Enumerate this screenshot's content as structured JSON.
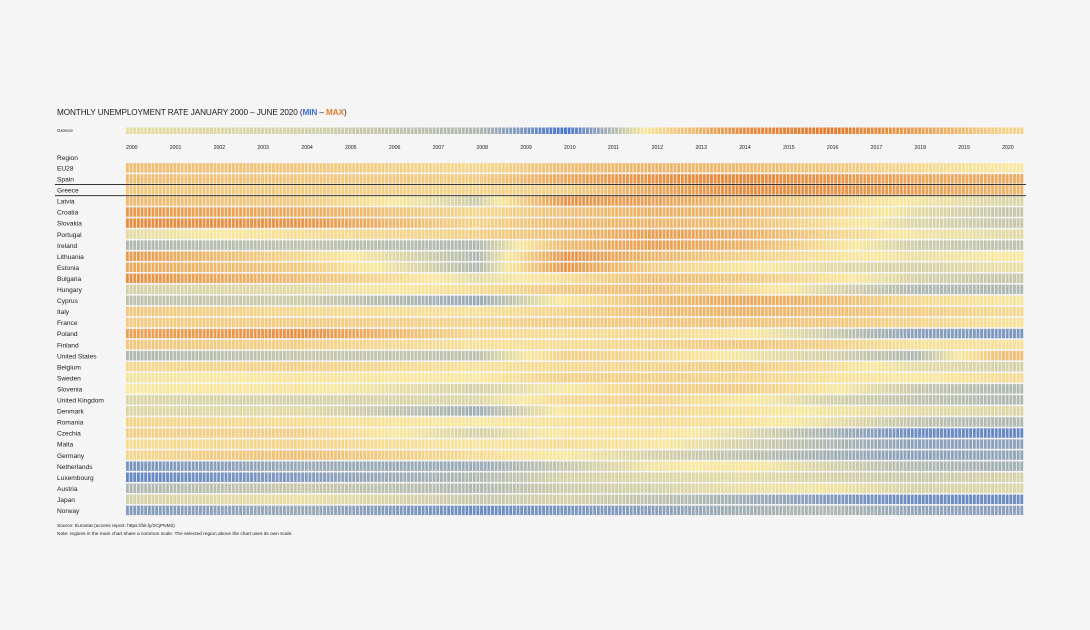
{
  "colors": {
    "min": "#3f6fd1",
    "mid": "#fae99b",
    "max": "#e37b2d"
  },
  "chart_data": {
    "type": "heatmap",
    "title_prefix": "MONTHLY UNEMPLOYMENT RATE JANUARY 2000 – JUNE 2020 (",
    "title_min": "MIN",
    "title_sep": " – ",
    "title_max": "MAX",
    "title_suffix": ")",
    "selected_region": "Greece",
    "region_header": "Region",
    "years": [
      "2000",
      "2001",
      "2002",
      "2003",
      "2004",
      "2005",
      "2006",
      "2007",
      "2008",
      "2009",
      "2010",
      "2011",
      "2012",
      "2013",
      "2014",
      "2015",
      "2016",
      "2017",
      "2018",
      "2019",
      "2020"
    ],
    "period": {
      "start": "2000-01",
      "end": "2020-06",
      "months": 246
    },
    "scale": "relative color scale, MIN (blue) to MAX (orange)",
    "anchor_years": [
      2000,
      2004,
      2008,
      2010,
      2012,
      2014,
      2016,
      2018,
      2020
    ],
    "selected_series": [
      0.45,
      0.4,
      0.3,
      0.02,
      0.55,
      0.92,
      1.0,
      0.85,
      0.6
    ],
    "regions": [
      {
        "name": "EU28",
        "levels": [
          0.7,
          0.66,
          0.58,
          0.7,
          0.74,
          0.72,
          0.66,
          0.58,
          0.5
        ]
      },
      {
        "name": "Spain",
        "levels": [
          0.7,
          0.66,
          0.64,
          0.8,
          0.9,
          0.94,
          0.88,
          0.8,
          0.78
        ]
      },
      {
        "name": "Greece",
        "levels": [
          0.66,
          0.64,
          0.6,
          0.62,
          0.8,
          0.92,
          0.9,
          0.84,
          0.74
        ]
      },
      {
        "name": "Latvia",
        "levels": [
          0.72,
          0.64,
          0.38,
          0.88,
          0.82,
          0.7,
          0.6,
          0.48,
          0.42
        ]
      },
      {
        "name": "Croatia",
        "levels": [
          0.86,
          0.78,
          0.58,
          0.68,
          0.76,
          0.74,
          0.62,
          0.44,
          0.36
        ]
      },
      {
        "name": "Slovakia",
        "levels": [
          0.92,
          0.88,
          0.6,
          0.72,
          0.74,
          0.7,
          0.56,
          0.42,
          0.36
        ]
      },
      {
        "name": "Portugal",
        "levels": [
          0.44,
          0.56,
          0.62,
          0.7,
          0.84,
          0.78,
          0.62,
          0.48,
          0.44
        ]
      },
      {
        "name": "Ireland",
        "levels": [
          0.3,
          0.34,
          0.3,
          0.72,
          0.84,
          0.76,
          0.56,
          0.38,
          0.34
        ]
      },
      {
        "name": "Lithuania",
        "levels": [
          0.86,
          0.58,
          0.3,
          0.88,
          0.74,
          0.62,
          0.54,
          0.46,
          0.5
        ]
      },
      {
        "name": "Estonia",
        "levels": [
          0.8,
          0.64,
          0.3,
          0.88,
          0.62,
          0.52,
          0.44,
          0.4,
          0.46
        ]
      },
      {
        "name": "Bulgaria",
        "levels": [
          0.9,
          0.7,
          0.44,
          0.56,
          0.7,
          0.66,
          0.54,
          0.4,
          0.36
        ]
      },
      {
        "name": "Hungary",
        "levels": [
          0.4,
          0.44,
          0.56,
          0.66,
          0.7,
          0.58,
          0.42,
          0.3,
          0.3
        ]
      },
      {
        "name": "Cyprus",
        "levels": [
          0.34,
          0.38,
          0.24,
          0.52,
          0.7,
          0.8,
          0.72,
          0.58,
          0.52
        ]
      },
      {
        "name": "Italy",
        "levels": [
          0.66,
          0.58,
          0.54,
          0.6,
          0.7,
          0.76,
          0.7,
          0.64,
          0.58
        ]
      },
      {
        "name": "France",
        "levels": [
          0.64,
          0.64,
          0.6,
          0.64,
          0.66,
          0.68,
          0.66,
          0.6,
          0.54
        ]
      },
      {
        "name": "Poland",
        "levels": [
          0.82,
          0.9,
          0.58,
          0.56,
          0.58,
          0.52,
          0.38,
          0.2,
          0.16
        ]
      },
      {
        "name": "Finland",
        "levels": [
          0.66,
          0.62,
          0.54,
          0.56,
          0.6,
          0.66,
          0.62,
          0.54,
          0.54
        ]
      },
      {
        "name": "United States",
        "levels": [
          0.3,
          0.36,
          0.34,
          0.62,
          0.58,
          0.48,
          0.4,
          0.3,
          0.7
        ]
      },
      {
        "name": "Belgium",
        "levels": [
          0.58,
          0.62,
          0.54,
          0.58,
          0.6,
          0.64,
          0.56,
          0.44,
          0.4
        ]
      },
      {
        "name": "Sweden",
        "levels": [
          0.48,
          0.52,
          0.5,
          0.62,
          0.62,
          0.6,
          0.54,
          0.5,
          0.56
        ]
      },
      {
        "name": "Slovenia",
        "levels": [
          0.5,
          0.52,
          0.4,
          0.5,
          0.62,
          0.64,
          0.52,
          0.36,
          0.3
        ]
      },
      {
        "name": "United Kingdom",
        "levels": [
          0.42,
          0.4,
          0.42,
          0.58,
          0.6,
          0.52,
          0.4,
          0.34,
          0.3
        ]
      },
      {
        "name": "Denmark",
        "levels": [
          0.42,
          0.44,
          0.26,
          0.52,
          0.58,
          0.54,
          0.48,
          0.44,
          0.42
        ]
      },
      {
        "name": "Romania",
        "levels": [
          0.6,
          0.56,
          0.5,
          0.54,
          0.56,
          0.54,
          0.46,
          0.34,
          0.3
        ]
      },
      {
        "name": "Czechia",
        "levels": [
          0.62,
          0.62,
          0.4,
          0.52,
          0.54,
          0.44,
          0.28,
          0.12,
          0.1
        ]
      },
      {
        "name": "Malta",
        "levels": [
          0.56,
          0.6,
          0.52,
          0.56,
          0.52,
          0.4,
          0.3,
          0.2,
          0.2
        ]
      },
      {
        "name": "Germany",
        "levels": [
          0.58,
          0.7,
          0.56,
          0.5,
          0.4,
          0.34,
          0.26,
          0.2,
          0.22
        ]
      },
      {
        "name": "Netherlands",
        "levels": [
          0.16,
          0.24,
          0.24,
          0.36,
          0.48,
          0.52,
          0.4,
          0.3,
          0.26
        ]
      },
      {
        "name": "Luxembourg",
        "levels": [
          0.1,
          0.18,
          0.3,
          0.4,
          0.42,
          0.44,
          0.4,
          0.36,
          0.4
        ]
      },
      {
        "name": "Austria",
        "levels": [
          0.3,
          0.36,
          0.3,
          0.38,
          0.4,
          0.46,
          0.48,
          0.4,
          0.42
        ]
      },
      {
        "name": "Japan",
        "levels": [
          0.4,
          0.46,
          0.36,
          0.4,
          0.34,
          0.26,
          0.18,
          0.12,
          0.12
        ]
      },
      {
        "name": "Norway",
        "levels": [
          0.18,
          0.24,
          0.12,
          0.16,
          0.2,
          0.26,
          0.3,
          0.22,
          0.2
        ]
      }
    ],
    "source": "Source: Eurostat (access report: https://bit.ly/2CjPNM2)",
    "note": "Note: regions in the main chart share a common scale. The selected region above the chart uses its own scale."
  }
}
